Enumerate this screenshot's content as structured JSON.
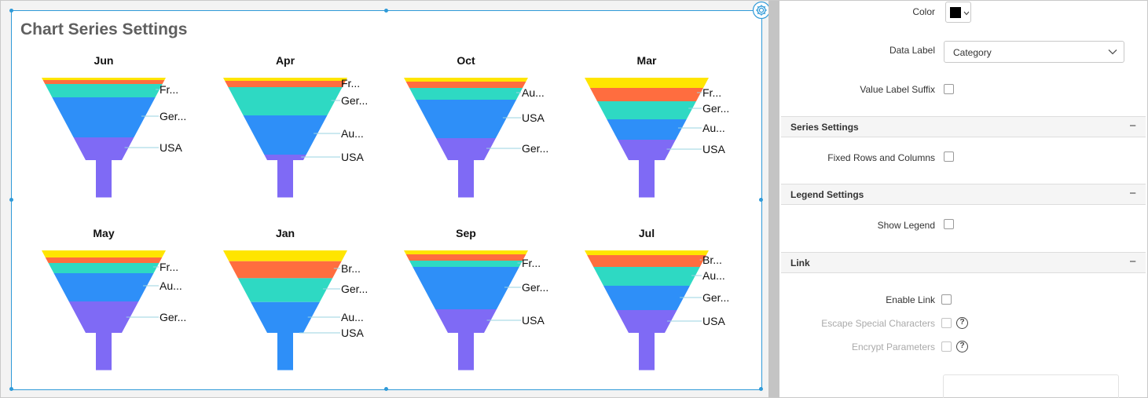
{
  "widget": {
    "title": "Chart Series Settings"
  },
  "colors": {
    "selection_border": "#2f9ad8",
    "yellow": "#ffe500",
    "orange": "#ff6d3f",
    "teal": "#2ed9c3",
    "blue": "#2e8ff8",
    "purple": "#7f6af5"
  },
  "chart_data": [
    {
      "type": "funnel",
      "title": "Jun",
      "labels": [
        "Fr...",
        "Ger...",
        "USA"
      ]
    },
    {
      "type": "funnel",
      "title": "Apr",
      "labels": [
        "Fr...",
        "Ger...",
        "Au...",
        "USA"
      ]
    },
    {
      "type": "funnel",
      "title": "Oct",
      "labels": [
        "Au...",
        "USA",
        "Ger..."
      ]
    },
    {
      "type": "funnel",
      "title": "Mar",
      "labels": [
        "Fr...",
        "Ger...",
        "Au...",
        "USA"
      ]
    },
    {
      "type": "funnel",
      "title": "May",
      "labels": [
        "Fr...",
        "Au...",
        "Ger..."
      ]
    },
    {
      "type": "funnel",
      "title": "Jan",
      "labels": [
        "Br...",
        "Ger...",
        "Au...",
        "USA"
      ]
    },
    {
      "type": "funnel",
      "title": "Sep",
      "labels": [
        "Fr...",
        "Ger...",
        "USA"
      ]
    },
    {
      "type": "funnel",
      "title": "Jul",
      "labels": [
        "Br...",
        "Au...",
        "Ger...",
        "USA"
      ]
    }
  ],
  "properties": {
    "color_label": "Color",
    "data_label_label": "Data Label",
    "data_label_value": "Category",
    "value_label_suffix_label": "Value Label Suffix",
    "series_settings_title": "Series Settings",
    "fixed_rows_label": "Fixed Rows and Columns",
    "legend_settings_title": "Legend Settings",
    "show_legend_label": "Show Legend",
    "link_title": "Link",
    "enable_link_label": "Enable Link",
    "escape_special_label": "Escape Special Characters",
    "encrypt_params_label": "Encrypt Parameters",
    "collapse_symbol": "−",
    "help_symbol": "?"
  }
}
